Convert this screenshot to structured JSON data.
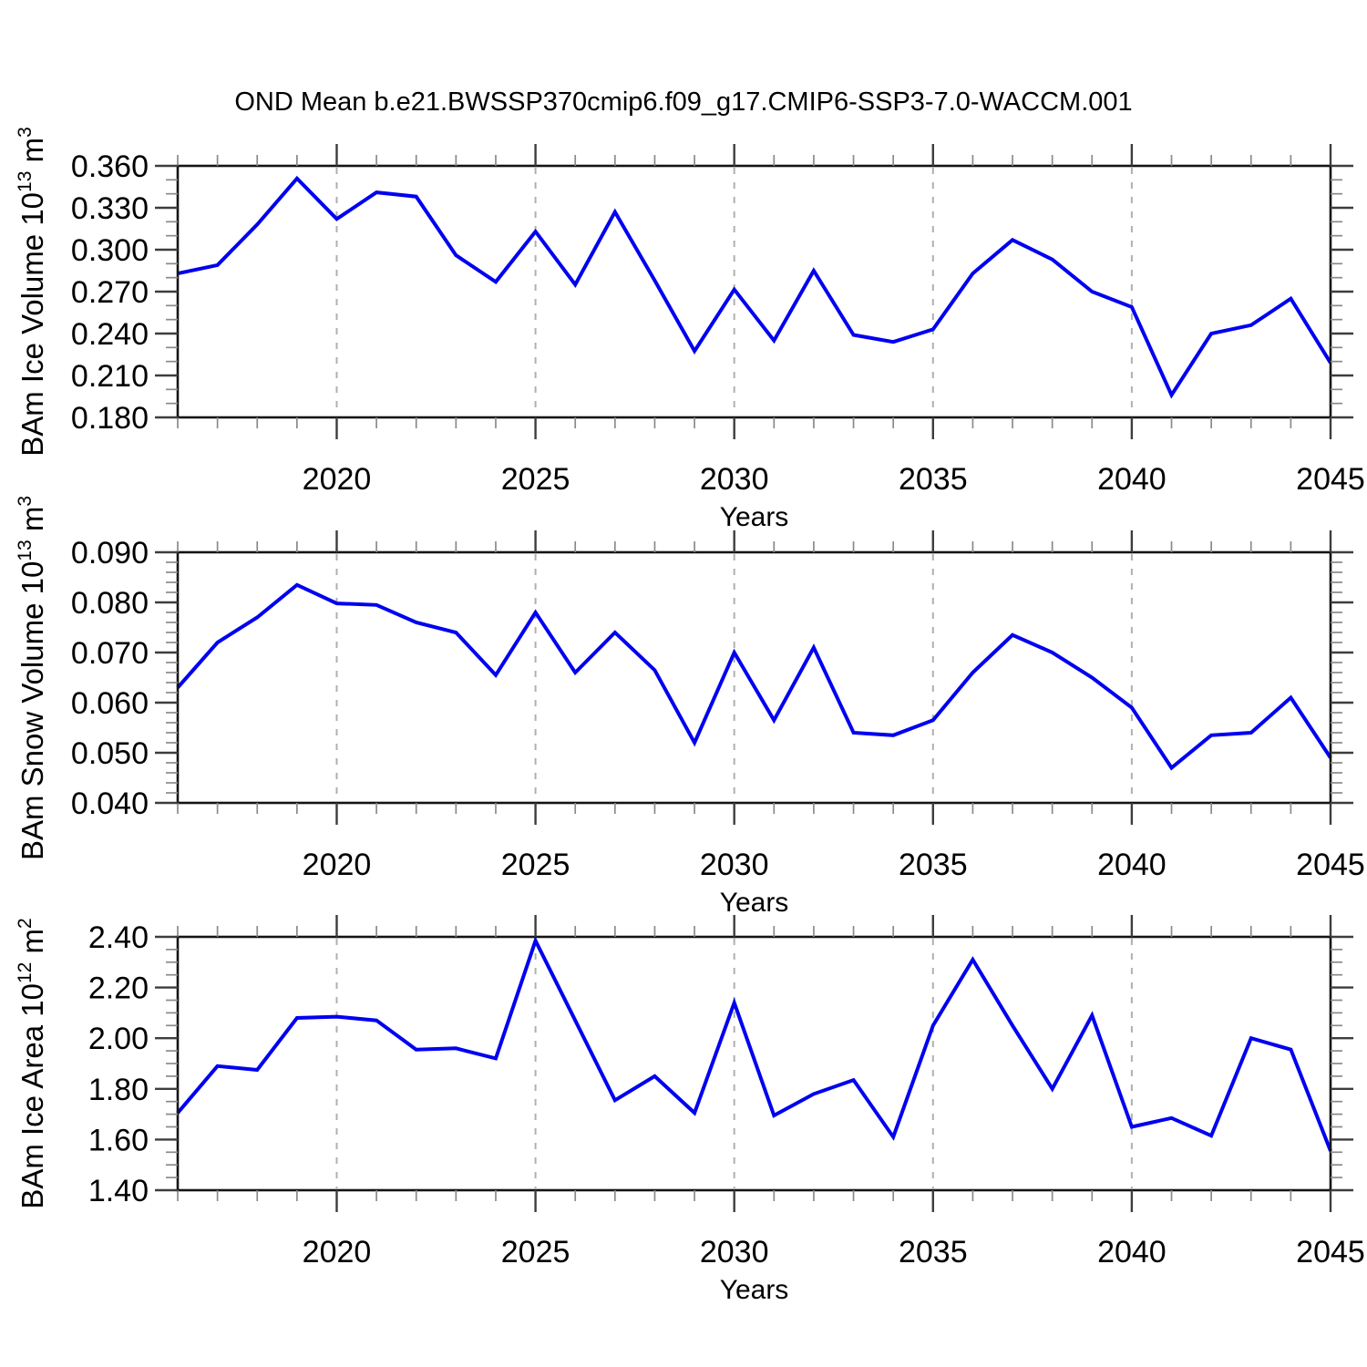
{
  "title": "OND Mean b.e21.BWSSP370cmip6.f09_g17.CMIP6-SSP3-7.0-WACCM.001",
  "colors": {
    "line": "#0000f0",
    "grid": "#b0b0b0",
    "frame": "#141414",
    "tick_major": "#3d3d3d",
    "tick_minor": "#8a8a8a",
    "text": "#000000"
  },
  "x_axis": {
    "label": "Years",
    "start_year": 2016,
    "end_year": 2045,
    "minor_step": 1,
    "major_step": 5,
    "first_major": 2020,
    "tick_labels": [
      "2020",
      "2025",
      "2030",
      "2035",
      "2040",
      "2045"
    ],
    "gridline_years": [
      2020,
      2025,
      2030,
      2035,
      2040
    ]
  },
  "chart_data": [
    {
      "type": "line",
      "panel": "ice-volume",
      "series_name": "BAm Ice Volume",
      "ylabel_parts": [
        "BAm Ice Volume 10",
        "13",
        " m",
        "3"
      ],
      "ylim": [
        0.18,
        0.36
      ],
      "y_major_step": 0.03,
      "y_minor_step": 0.01,
      "y_tick_labels": [
        "0.180",
        "0.210",
        "0.240",
        "0.270",
        "0.300",
        "0.330",
        "0.360"
      ],
      "x": [
        2016,
        2017,
        2018,
        2019,
        2020,
        2021,
        2022,
        2023,
        2024,
        2025,
        2026,
        2027,
        2028,
        2029,
        2030,
        2031,
        2032,
        2033,
        2034,
        2035,
        2036,
        2037,
        2038,
        2039,
        2040,
        2041,
        2042,
        2043,
        2044,
        2045
      ],
      "values": [
        0.283,
        0.289,
        0.318,
        0.351,
        0.322,
        0.341,
        0.338,
        0.296,
        0.277,
        0.313,
        0.275,
        0.327,
        0.278,
        0.2275,
        0.2715,
        0.235,
        0.285,
        0.239,
        0.234,
        0.243,
        0.283,
        0.307,
        0.293,
        0.27,
        0.259,
        0.196,
        0.24,
        0.246,
        0.265,
        0.219
      ]
    },
    {
      "type": "line",
      "panel": "snow-volume",
      "series_name": "BAm Snow Volume",
      "ylabel_parts": [
        "BAm Snow Volume 10",
        "13",
        " m",
        "3"
      ],
      "ylim": [
        0.04,
        0.09
      ],
      "y_major_step": 0.01,
      "y_minor_step": 0.002,
      "y_tick_labels": [
        "0.040",
        "0.050",
        "0.060",
        "0.070",
        "0.080",
        "0.090"
      ],
      "x": [
        2016,
        2017,
        2018,
        2019,
        2020,
        2021,
        2022,
        2023,
        2024,
        2025,
        2026,
        2027,
        2028,
        2029,
        2030,
        2031,
        2032,
        2033,
        2034,
        2035,
        2036,
        2037,
        2038,
        2039,
        2040,
        2041,
        2042,
        2043,
        2044,
        2045
      ],
      "values": [
        0.063,
        0.072,
        0.077,
        0.0835,
        0.0798,
        0.0795,
        0.076,
        0.074,
        0.0655,
        0.078,
        0.066,
        0.074,
        0.0665,
        0.052,
        0.07,
        0.0565,
        0.071,
        0.054,
        0.0535,
        0.0565,
        0.066,
        0.0735,
        0.07,
        0.065,
        0.059,
        0.047,
        0.0535,
        0.054,
        0.061,
        0.049
      ]
    },
    {
      "type": "line",
      "panel": "ice-area",
      "series_name": "BAm Ice Area",
      "ylabel_parts": [
        "BAm Ice Area 10",
        "12",
        " m",
        "2"
      ],
      "ylim": [
        1.4,
        2.4
      ],
      "y_major_step": 0.2,
      "y_minor_step": 0.05,
      "y_tick_labels": [
        "1.40",
        "1.60",
        "1.80",
        "2.00",
        "2.20",
        "2.40"
      ],
      "x": [
        2016,
        2017,
        2018,
        2019,
        2020,
        2021,
        2022,
        2023,
        2024,
        2025,
        2026,
        2027,
        2028,
        2029,
        2030,
        2031,
        2032,
        2033,
        2034,
        2035,
        2036,
        2037,
        2038,
        2039,
        2040,
        2041,
        2042,
        2043,
        2044,
        2045
      ],
      "values": [
        1.705,
        1.89,
        1.875,
        2.08,
        2.085,
        2.07,
        1.955,
        1.96,
        1.92,
        2.385,
        2.07,
        1.755,
        1.85,
        1.705,
        2.14,
        1.695,
        1.78,
        1.835,
        1.61,
        2.05,
        2.31,
        2.05,
        1.8,
        2.09,
        1.65,
        1.685,
        1.615,
        2.0,
        1.955,
        1.555
      ]
    }
  ]
}
